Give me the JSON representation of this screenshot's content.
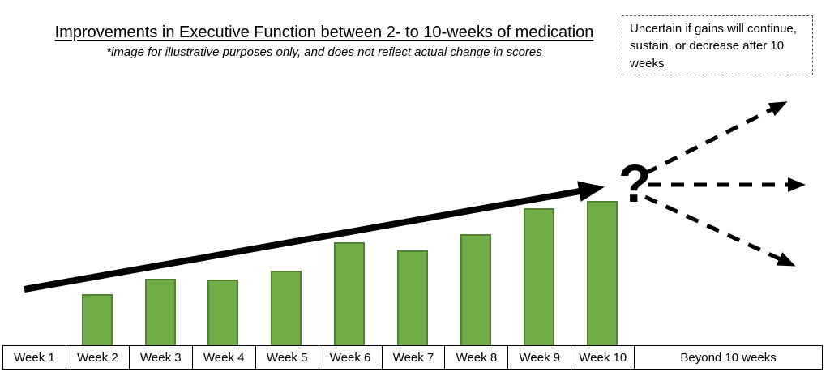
{
  "title": "Improvements in Executive Function between 2- to 10-weeks of medication",
  "subtitle": "*image for illustrative purposes only, and does not reflect actual change in scores",
  "note_box": {
    "text": "Uncertain if gains will continue, sustain, or decrease after 10 weeks"
  },
  "question_mark": "?",
  "timeline": {
    "cells": [
      "Week 1",
      "Week 2",
      "Week 3",
      "Week 4",
      "Week 5",
      "Week 6",
      "Week 7",
      "Week 8",
      "Week 9",
      "Week 10",
      "Beyond 10 weeks"
    ]
  },
  "colors": {
    "bar_fill": "#70AD47",
    "bar_border": "#548235",
    "arrow": "#000000",
    "text": "#000000"
  },
  "chart_data": {
    "type": "bar",
    "title": "Improvements in Executive Function between 2- to 10-weeks of medication",
    "subtitle": "*image for illustrative purposes only, and does not reflect actual change in scores",
    "categories": [
      "Week 1",
      "Week 2",
      "Week 3",
      "Week 4",
      "Week 5",
      "Week 6",
      "Week 7",
      "Week 8",
      "Week 9",
      "Week 10"
    ],
    "values": [
      0,
      35.4,
      46.1,
      45.5,
      51.7,
      71.3,
      65.7,
      77,
      94.9,
      100
    ],
    "units": "relative improvement (illustrative, unitless)",
    "xlabel": "",
    "ylabel": "",
    "ylim": [
      0,
      112
    ],
    "grid": false,
    "legend": false,
    "bar_color": "#70AD47",
    "annotations": [
      {
        "type": "arrow",
        "style": "solid",
        "from": "Week 1",
        "to": "Week 10",
        "meaning": "upward trend across weeks"
      },
      {
        "type": "text",
        "text": "?",
        "position": "after Week 10"
      },
      {
        "type": "arrow",
        "style": "dashed",
        "direction": "up-right",
        "meaning": "gains continue"
      },
      {
        "type": "arrow",
        "style": "dashed",
        "direction": "right",
        "meaning": "gains sustain"
      },
      {
        "type": "arrow",
        "style": "dashed",
        "direction": "down-right",
        "meaning": "gains decrease"
      },
      {
        "type": "note",
        "text": "Uncertain if gains will continue, sustain, or decrease after 10 weeks"
      }
    ]
  }
}
